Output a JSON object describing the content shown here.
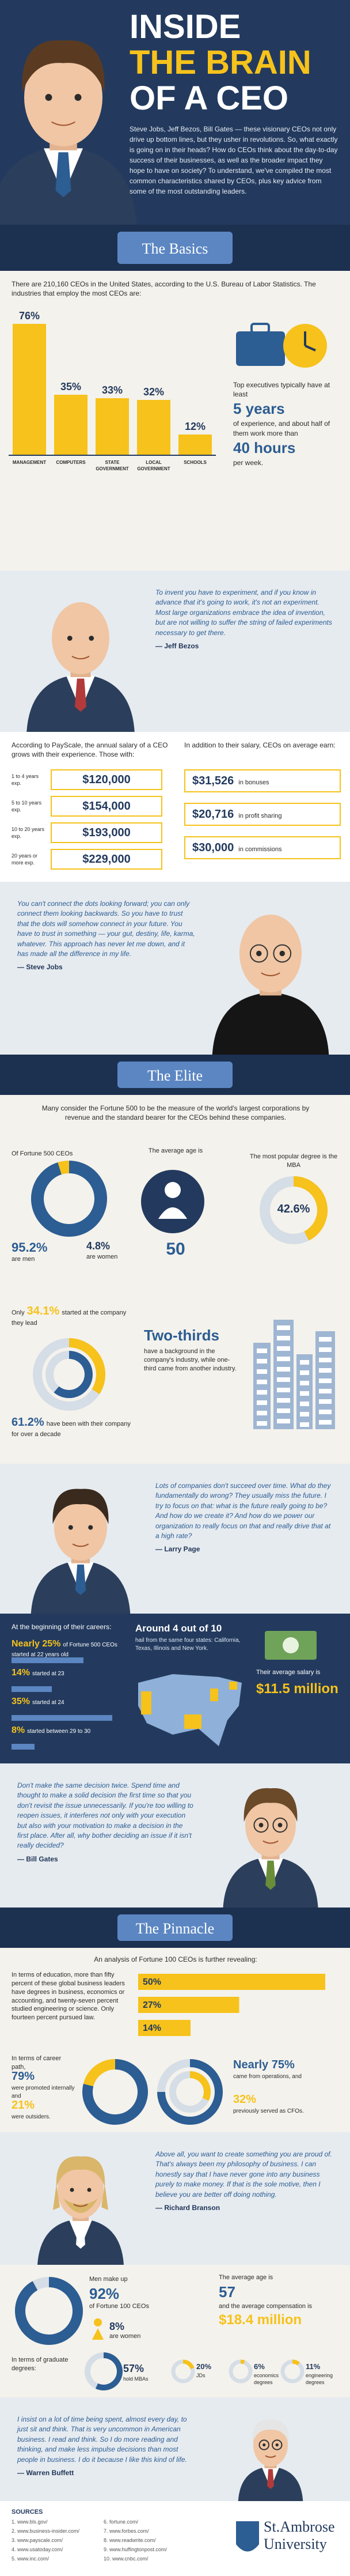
{
  "header": {
    "title_lines": [
      "INSIDE",
      "THE BRAIN",
      "OF A CEO"
    ],
    "intro": "Steve Jobs, Jeff Bezos, Bill Gates — these visionary CEOs not only drive up bottom lines, but they usher in revolutions. So, what exactly is going on in their heads? How do CEOs think about the day-to-day success of their businesses, as well as the broader impact they hope to have on society? To understand, we've compiled the most common characteristics shared by CEOs, plus key advice from some of the most outstanding leaders."
  },
  "basics": {
    "heading": "The Basics",
    "intro": "There are 210,160 CEOs in the United States, according to the U.S. Bureau of Labor Statistics. The industries that employ the most CEOs are:",
    "chart": {
      "categories": [
        "MANAGEMENT",
        "COMPUTERS",
        "STATE GOVERNMENT",
        "LOCAL GOVERNMENT",
        "SCHOOLS"
      ],
      "values": [
        76,
        35,
        33,
        32,
        12
      ],
      "value_labels": [
        "76%",
        "35%",
        "33%",
        "32%",
        "12%"
      ]
    },
    "experience": {
      "pre": "Top executives typically have at least",
      "years": "5 years",
      "mid": "of experience, and about half of them work more than",
      "hours": "40 hours",
      "post": "per week."
    }
  },
  "quotes": [
    {
      "text": "To invent you have to experiment, and if you know in advance that it's going to work, it's not an experiment. Most large organizations embrace the idea of invention, but are not willing to suffer the string of failed experiments necessary to get there.",
      "author": "— Jeff Bezos"
    },
    {
      "text": "You can't connect the dots looking forward; you can only connect them looking backwards. So you have to trust that the dots will somehow connect in your future. You have to trust in something — your gut, destiny, life, karma, whatever. This approach has never let me down, and it has made all the difference in my life.",
      "author": "— Steve Jobs"
    },
    {
      "text": "Lots of companies don't succeed over time. What do they fundamentally do wrong? They usually miss the future. I try to focus on that: what is the future really going to be? And how do we create it? And how do we power our organization to really focus on that and really drive that at a high rate?",
      "author": "— Larry Page"
    },
    {
      "text": "Don't make the same decision twice. Spend time and thought to make a solid decision the first time so that you don't revisit the issue unnecessarily. If you're too willing to reopen issues, it interferes not only with your execution but also with your motivation to make a decision in the first place. After all, why bother deciding an issue if it isn't really decided?",
      "author": "— Bill Gates"
    },
    {
      "text": "Above all, you want to create something you are proud of. That's always been my philosophy of business. I can honestly say that I have never gone into any business purely to make money. If that is the sole motive, then I believe you are better off doing nothing.",
      "author": "— Richard Branson"
    },
    {
      "text": "I insist on a lot of time being spent, almost every day, to just sit and think. That is very uncommon in American business. I read and think. So I do more reading and thinking, and make less impulse decisions than most people in business. I do it because I like this kind of life.",
      "author": "— Warren Buffett"
    }
  ],
  "salary": {
    "intro": "According to PayScale, the annual salary of a CEO grows with their experience. Those with:",
    "rows": [
      {
        "label": "1 to 4 years exp.",
        "amount": "$120,000"
      },
      {
        "label": "5 to 10 years exp.",
        "amount": "$154,000"
      },
      {
        "label": "10 to 20 years exp.",
        "amount": "$193,000"
      },
      {
        "label": "20 years or more exp.",
        "amount": "$229,000"
      }
    ],
    "extra_intro": "In addition to their salary, CEOs on average earn:",
    "extras": [
      {
        "amount": "$31,526",
        "label": "in bonuses"
      },
      {
        "amount": "$20,716",
        "label": "in profit sharing"
      },
      {
        "amount": "$30,000",
        "label": "in commissions"
      }
    ]
  },
  "elite": {
    "heading": "The Elite",
    "intro": "Many consider the Fortune 500 to be the measure of the world's largest corporations by revenue and the standard bearer for the CEOs behind these companies.",
    "gender": {
      "pre": "Of Fortune 500 CEOs",
      "men": {
        "value": 95.2,
        "label": "95.2%",
        "text": "are men"
      },
      "women": {
        "value": 4.8,
        "label": "4.8%",
        "text": "are women"
      }
    },
    "age": {
      "pre": "The average age is",
      "value": "50"
    },
    "degree": {
      "pre": "The most popular degree is the MBA",
      "value": 42.6,
      "label": "42.6%"
    },
    "studied": {
      "pre": "Only",
      "value": 34.1,
      "label": "34.1%",
      "text": "started at the company they lead"
    },
    "tenure": {
      "value": 61.2,
      "label": "61.2%",
      "text": "have been with their company for over a decade"
    },
    "two_thirds": {
      "heading": "Two-thirds",
      "text": "have a background in the company's industry, while one-third came from another industry."
    }
  },
  "careers": {
    "intro": "At the beginning of their careers:",
    "items": [
      {
        "value": 25,
        "label": "Nearly 25%",
        "text": "of Fortune 500 CEOs started at 22 years old"
      },
      {
        "value": 14,
        "label": "14%",
        "text": "started at 23"
      },
      {
        "value": 35,
        "label": "35%",
        "text": "started at 24"
      },
      {
        "value": 8,
        "label": "8%",
        "text": "started between 29 to 30"
      }
    ],
    "states": {
      "heading": "Around 4 out of 10",
      "text": "hail from the same four states: California, Texas, Illinois and New York."
    },
    "pay": {
      "pre": "Their average salary is",
      "value": "$11.5 million"
    }
  },
  "pinnacle": {
    "heading": "The Pinnacle",
    "intro": "An analysis of Fortune 100 CEOs is further revealing:",
    "education": {
      "text": "In terms of education, more than fifty percent of these global business leaders have degrees in business, economics or accounting, and twenty-seven percent studied engineering or science. Only fourteen percent pursued law.",
      "values": [
        50,
        27,
        14
      ],
      "value_labels": [
        "50%",
        "27%",
        "14%"
      ]
    },
    "career": {
      "intro": "In terms of career path,",
      "internal": {
        "value": 79,
        "label": "79%",
        "text": "were promoted internally and"
      },
      "outsiders": {
        "value": 21,
        "label": "21%",
        "text": "were outsiders."
      },
      "operations": {
        "value": 75,
        "label": "Nearly 75%",
        "text": "came from operations, and"
      },
      "cfo": {
        "value": 32,
        "label": "32%",
        "text": "previously served as CFOs."
      }
    }
  },
  "top100": {
    "men": {
      "pre": "Men make up",
      "value": 92,
      "label": "92%",
      "text": "of Fortune 100 CEOs"
    },
    "women": {
      "label": "8%",
      "text": "are women"
    },
    "age": {
      "pre": "The average age is",
      "value": "57",
      "mid": "and the average compensation is",
      "pay": "$18.4 million"
    },
    "degrees": {
      "intro": "In terms of graduate degrees:",
      "items": [
        {
          "value": 57,
          "label": "57%",
          "text": "hold MBAs"
        },
        {
          "value": 20,
          "label": "20%",
          "text": "JDs"
        },
        {
          "value": 6,
          "label": "6%",
          "text": "economics degrees"
        },
        {
          "value": 11,
          "label": "11%",
          "text": "engineering degrees"
        }
      ]
    }
  },
  "footer": {
    "sources_title": "SOURCES",
    "sources": [
      "1. www.bls.gov/",
      "2. www.business-insider.com/",
      "3. www.payscale.com/",
      "4. www.usatoday.com/",
      "5. www.inc.com/",
      "6. fortune.com/",
      "7. www.forbes.com/",
      "8. www.readwrite.com/",
      "9. www.huffingtonpost.com/",
      "10. www.cnbc.com/"
    ],
    "logo": {
      "line1": "St.Ambrose",
      "line2": "University"
    }
  }
}
